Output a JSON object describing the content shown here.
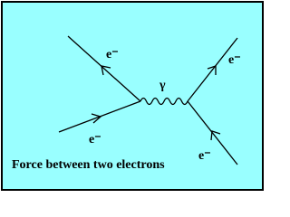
{
  "electron_labels": [
    "e⁻",
    "e⁻",
    "e⁻",
    "e⁻"
  ],
  "photon_label": "γ",
  "caption": "Force between two electrons"
}
